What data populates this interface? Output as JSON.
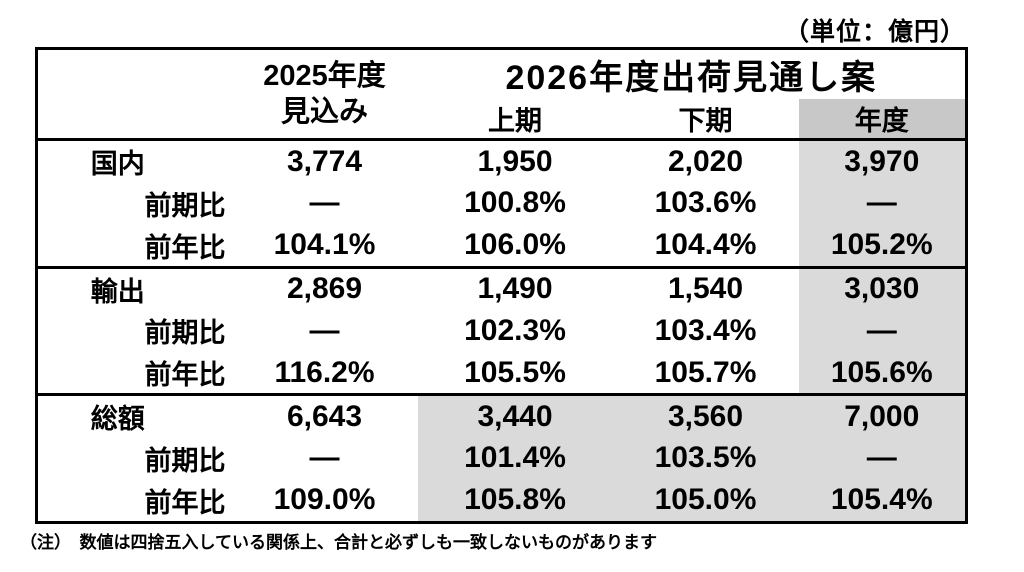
{
  "unit_note": "（単位：億円）",
  "footer_note": "（注）　数値は四捨五入している関係上、合計と必ずしも一致しないものがあります",
  "colors": {
    "subheader_fy_bg": "#c8c8c8",
    "highlight_bg": "#dadada"
  },
  "chart_data": {
    "type": "table",
    "title": "2026年度出荷見通し案",
    "unit": "億円",
    "header": {
      "fy2025_line1": "2025年度",
      "fy2025_line2": "見込み",
      "group_2026": "2026年度出荷見通し案",
      "sub_h1": "上期",
      "sub_h2": "下期",
      "sub_fy": "年度"
    },
    "rows": [
      {
        "label": "国内",
        "fy2025": "3,774",
        "h1": "1,950",
        "h2": "2,020",
        "fy2026": "3,970"
      },
      {
        "label": "前期比",
        "fy2025": "—",
        "h1": "100.8%",
        "h2": "103.6%",
        "fy2026": "—"
      },
      {
        "label": "前年比",
        "fy2025": "104.1%",
        "h1": "106.0%",
        "h2": "104.4%",
        "fy2026": "105.2%"
      },
      {
        "label": "輸出",
        "fy2025": "2,869",
        "h1": "1,490",
        "h2": "1,540",
        "fy2026": "3,030"
      },
      {
        "label": "前期比",
        "fy2025": "—",
        "h1": "102.3%",
        "h2": "103.4%",
        "fy2026": "—"
      },
      {
        "label": "前年比",
        "fy2025": "116.2%",
        "h1": "105.5%",
        "h2": "105.7%",
        "fy2026": "105.6%"
      },
      {
        "label": "総額",
        "fy2025": "6,643",
        "h1": "3,440",
        "h2": "3,560",
        "fy2026": "7,000"
      },
      {
        "label": "前期比",
        "fy2025": "—",
        "h1": "101.4%",
        "h2": "103.5%",
        "fy2026": "—"
      },
      {
        "label": "前年比",
        "fy2025": "109.0%",
        "h1": "105.8%",
        "h2": "105.0%",
        "fy2026": "105.4%"
      }
    ]
  }
}
